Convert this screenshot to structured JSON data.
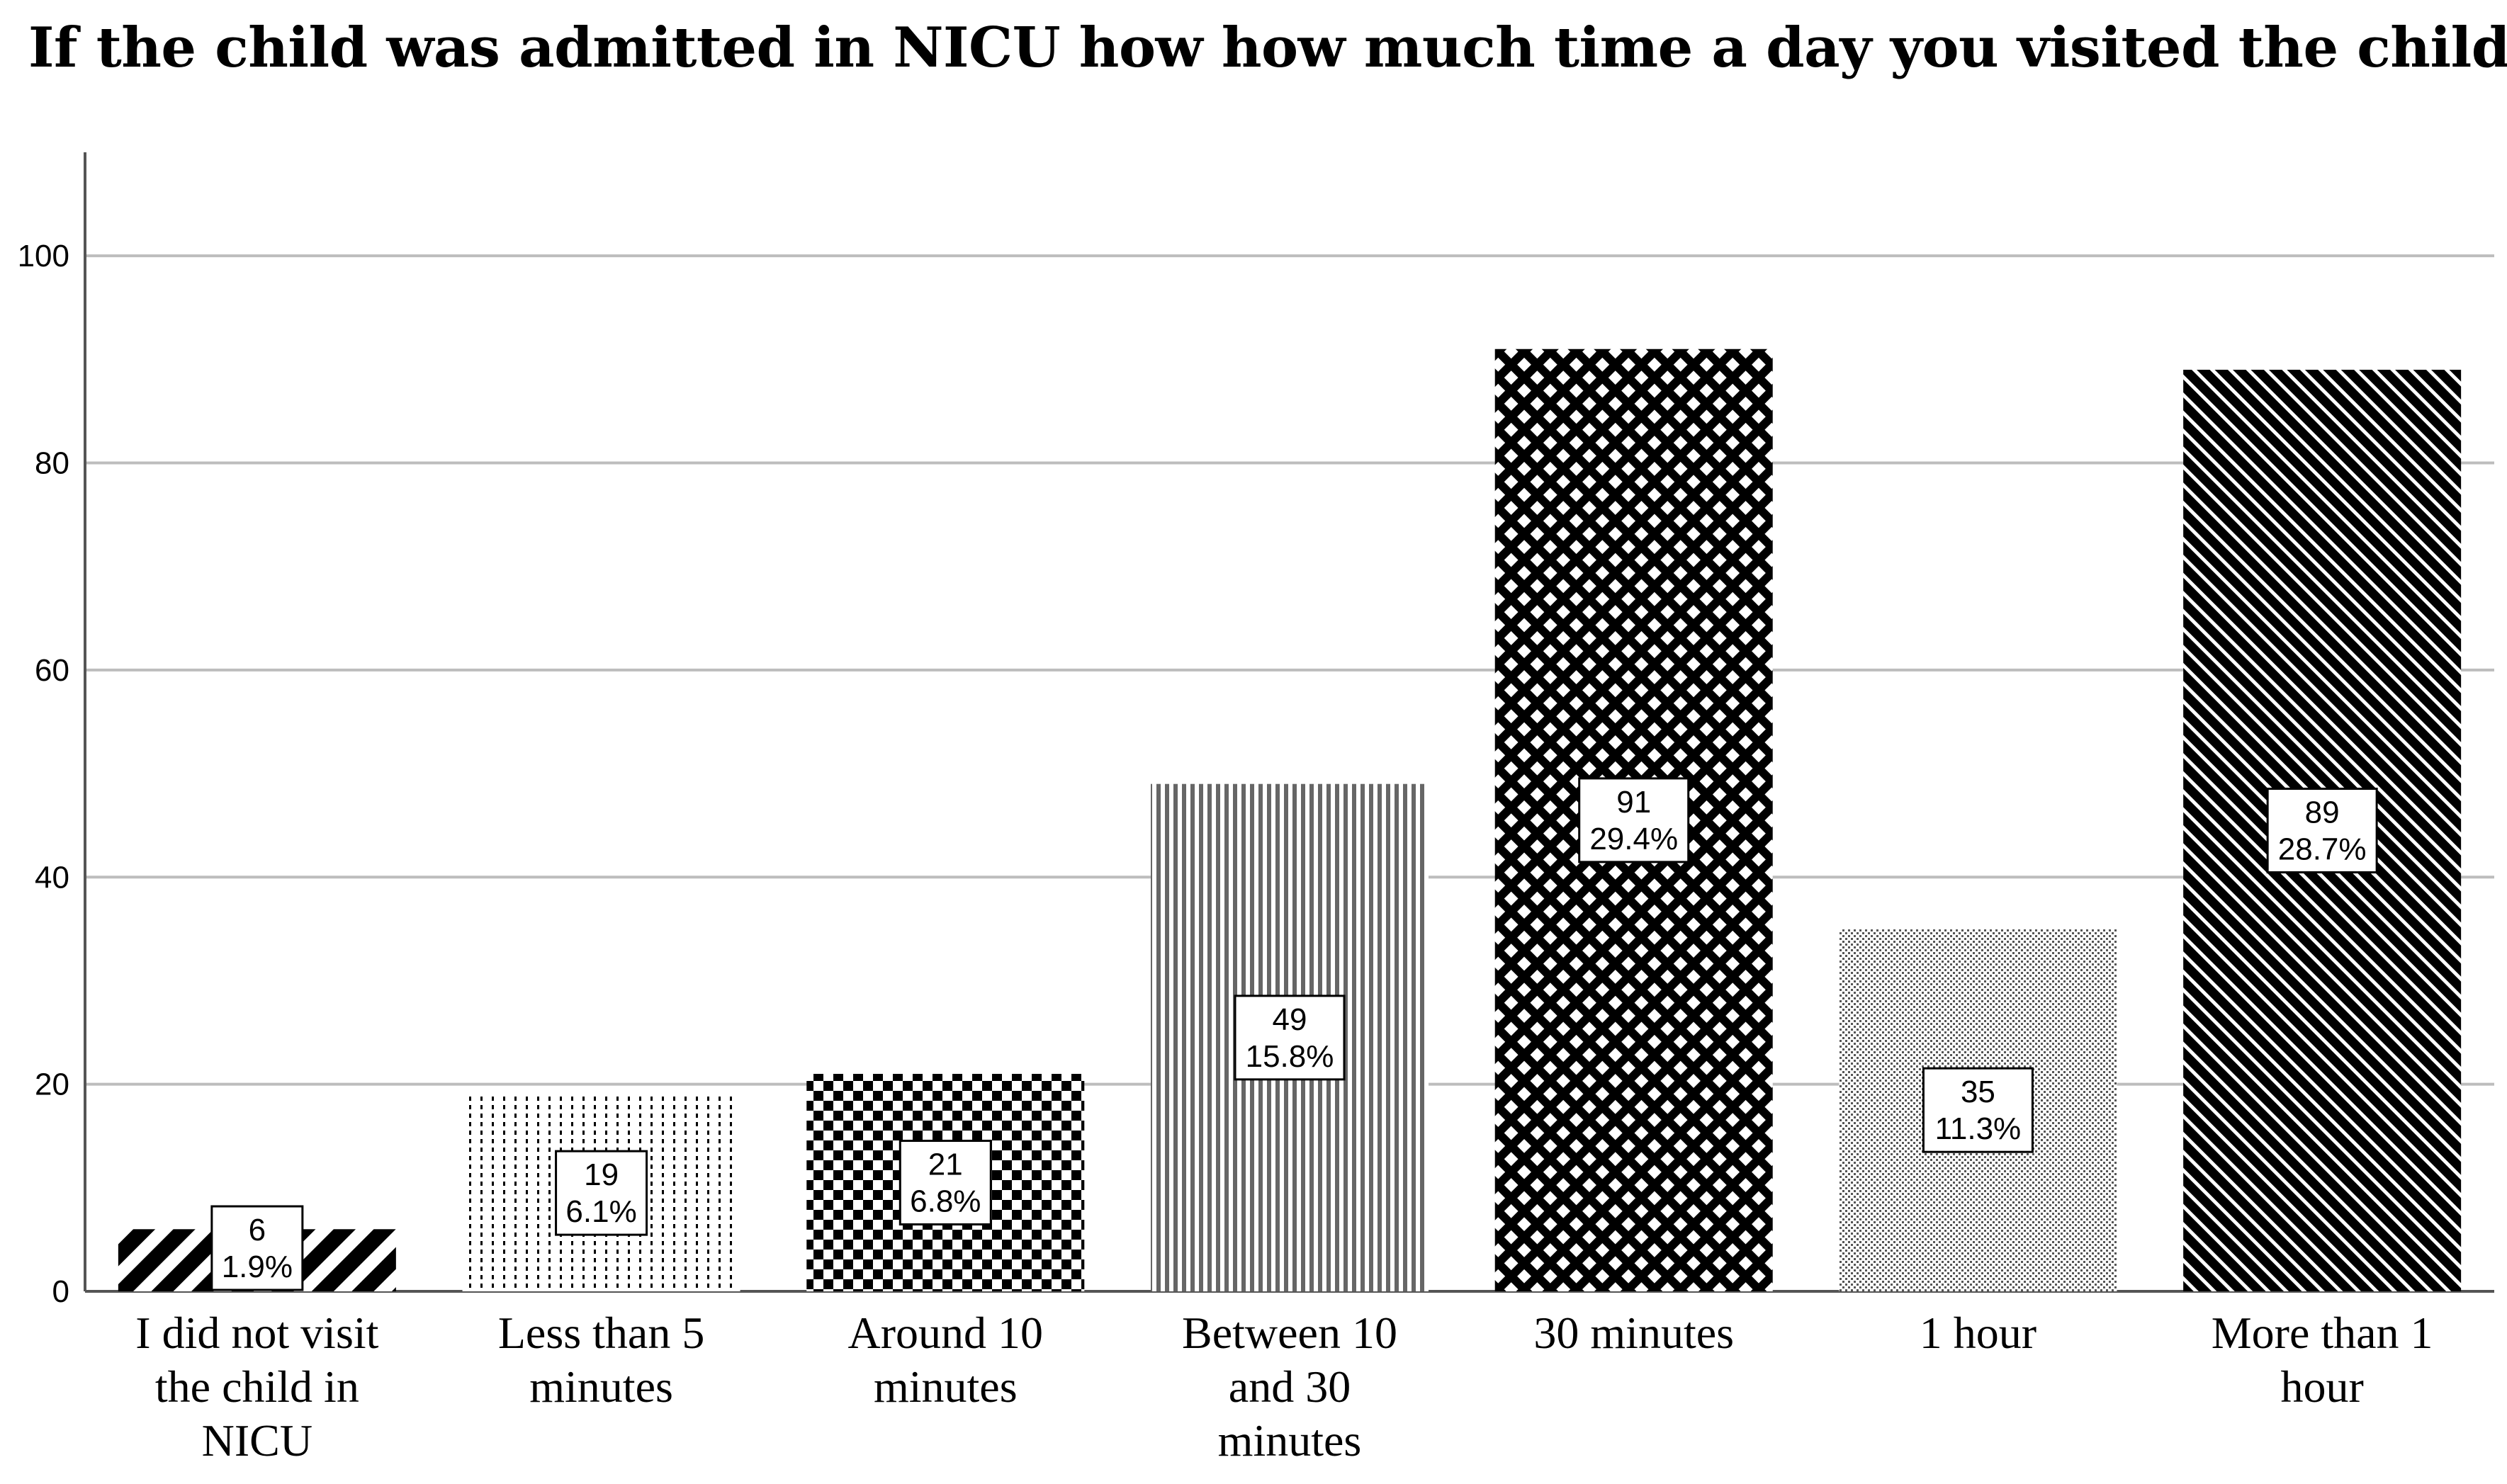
{
  "chart_data": {
    "type": "bar",
    "title": "If the child was admitted in NICU how how much time a day you visited the child ?",
    "xlabel": "",
    "ylabel": "",
    "ylim": [
      0,
      110
    ],
    "yticks": [
      "0",
      "20",
      "40",
      "60",
      "80",
      "100"
    ],
    "grid": true,
    "categories": [
      "I did not visit the child in NICU",
      "Less than 5 minutes",
      "Around 10 minutes",
      "Between 10 and 30 minutes",
      "30 minutes",
      "1 hour",
      "More than 1 hour"
    ],
    "values": [
      6,
      19,
      21,
      49,
      91,
      35,
      89
    ],
    "percent_labels": [
      "1.9%",
      "6.1%",
      "6.8%",
      "15.8%",
      "29.4%",
      "11.3%",
      "28.7%"
    ],
    "category_lines": [
      [
        "I did not visit",
        "the child in",
        "NICU"
      ],
      [
        "Less than 5",
        "minutes"
      ],
      [
        "Around 10",
        "minutes"
      ],
      [
        "Between 10",
        "and 30",
        "minutes"
      ],
      [
        "30 minutes"
      ],
      [
        "1 hour"
      ],
      [
        "More than 1",
        "hour"
      ]
    ],
    "patterns": [
      "diag-thick",
      "dots-vertical",
      "checker",
      "vertical-lines",
      "crosshatch",
      "fine-dots",
      "diag-fine"
    ]
  },
  "colors": {
    "ink": "#000000",
    "grid": "#bdbdbd",
    "axis": "#555555",
    "background": "#ffffff"
  }
}
